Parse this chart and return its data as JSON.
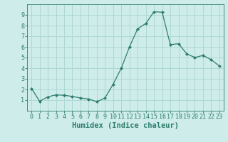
{
  "x": [
    0,
    1,
    2,
    3,
    4,
    5,
    6,
    7,
    8,
    9,
    10,
    11,
    12,
    13,
    14,
    15,
    16,
    17,
    18,
    19,
    20,
    21,
    22,
    23
  ],
  "y": [
    2.1,
    0.9,
    1.3,
    1.5,
    1.45,
    1.35,
    1.2,
    1.1,
    0.85,
    1.2,
    2.5,
    4.0,
    6.0,
    7.7,
    8.2,
    9.3,
    9.25,
    6.2,
    6.3,
    5.35,
    5.0,
    5.2,
    4.8,
    4.2
  ],
  "line_color": "#2e7d6e",
  "marker": "D",
  "marker_size": 2.0,
  "bg_color": "#ceecea",
  "grid_color": "#aed8d4",
  "xlabel": "Humidex (Indice chaleur)",
  "ylim": [
    0,
    10
  ],
  "xlim": [
    -0.5,
    23.5
  ],
  "yticks": [
    1,
    2,
    3,
    4,
    5,
    6,
    7,
    8,
    9
  ],
  "xticks": [
    0,
    1,
    2,
    3,
    4,
    5,
    6,
    7,
    8,
    9,
    10,
    11,
    12,
    13,
    14,
    15,
    16,
    17,
    18,
    19,
    20,
    21,
    22,
    23
  ],
  "tick_color": "#2e7d6e",
  "label_fontsize": 7.5,
  "tick_fontsize": 6.0
}
